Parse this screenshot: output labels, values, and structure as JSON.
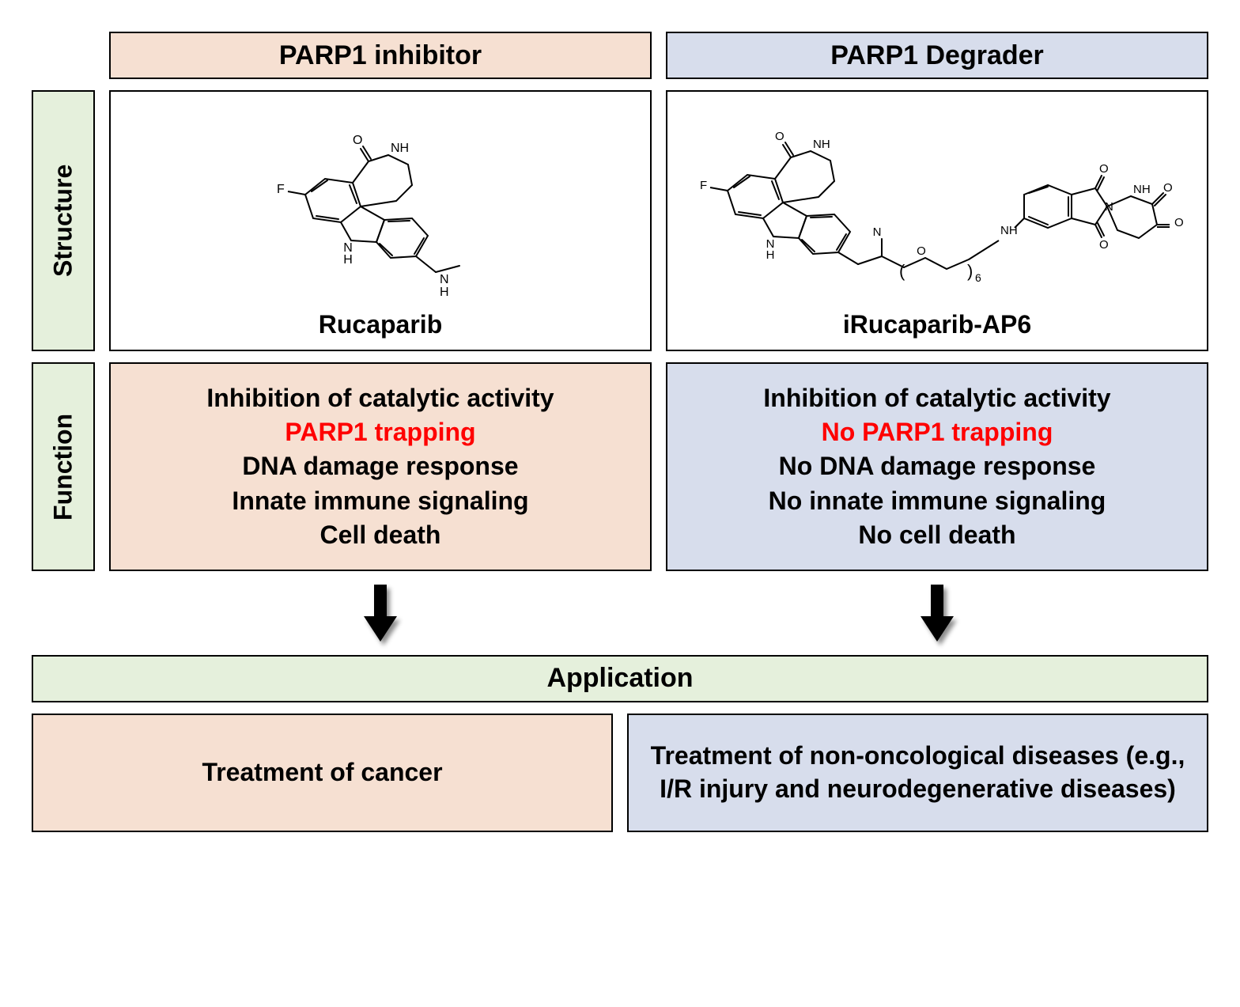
{
  "colors": {
    "green": "#e5f0dc",
    "peach": "#f6e0d2",
    "blue": "#d7ddec",
    "white": "#ffffff",
    "border": "#000000",
    "text": "#000000",
    "highlight": "#ff0000"
  },
  "headers": {
    "col1": "PARP1 inhibitor",
    "col2": "PARP1 Degrader"
  },
  "rows": {
    "structure": "Structure",
    "function": "Function",
    "application": "Application"
  },
  "structure": {
    "col1_name": "Rucaparib",
    "col2_name": "iRucaparib-AP6"
  },
  "function": {
    "col1": [
      {
        "text": "Inhibition of catalytic activity",
        "highlight": false
      },
      {
        "text": "PARP1 trapping",
        "highlight": true
      },
      {
        "text": "DNA damage response",
        "highlight": false
      },
      {
        "text": "Innate immune signaling",
        "highlight": false
      },
      {
        "text": "Cell death",
        "highlight": false
      }
    ],
    "col2": [
      {
        "text": "Inhibition of catalytic activity",
        "highlight": false
      },
      {
        "text": "No PARP1 trapping",
        "highlight": true
      },
      {
        "text": "No DNA damage response",
        "highlight": false
      },
      {
        "text": "No innate immune signaling",
        "highlight": false
      },
      {
        "text": "No cell death",
        "highlight": false
      }
    ]
  },
  "application": {
    "col1": "Treatment of cancer",
    "col2": "Treatment of non-oncological diseases (e.g., I/R injury and neurodegenerative diseases)"
  },
  "fontsize": {
    "header": 34,
    "body": 32
  }
}
